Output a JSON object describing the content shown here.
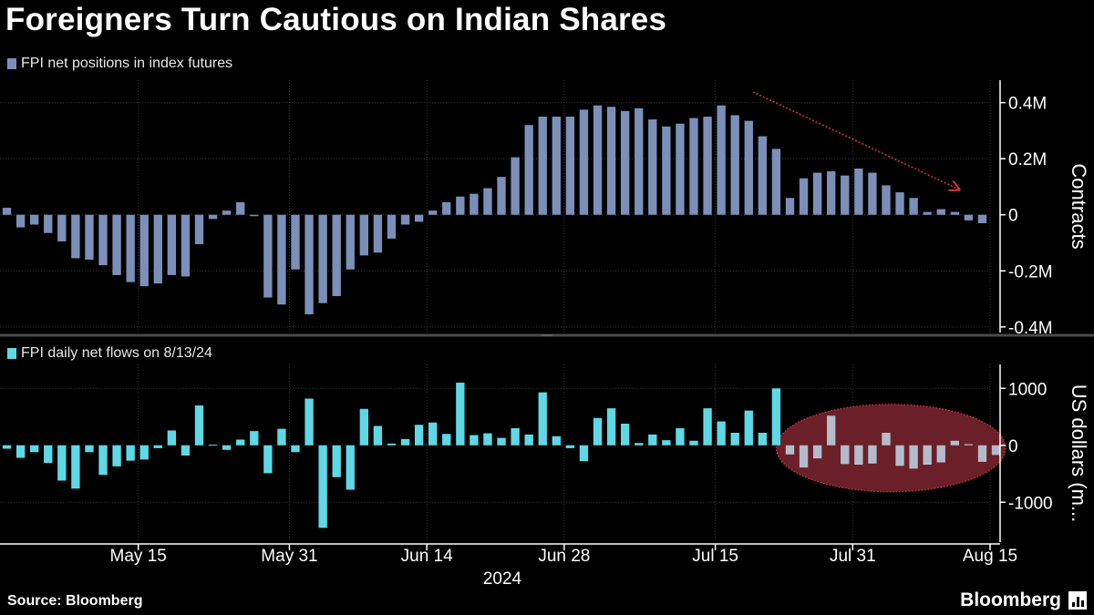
{
  "title": "Foreigners Turn Cautious on Indian Shares",
  "source": "Source: Bloomberg",
  "brand": "Bloomberg",
  "colors": {
    "positions": "#7b8fb8",
    "flows": "#5fd8e6",
    "flows_highlighted": "#b4bccc",
    "highlight_fill": "#6b2029",
    "arrow": "#d9363e",
    "grid": "#3a3a3a",
    "axis": "#ffffff",
    "divider": "#4a4a4a"
  },
  "chart_data": [
    {
      "type": "bar",
      "legend": "FPI net positions in index futures",
      "ylabel": "Contracts",
      "ylim": [
        -0.42,
        0.48
      ],
      "yticks": [
        0.4,
        0.2,
        0,
        -0.2,
        -0.4
      ],
      "ytick_labels": [
        "0.4M",
        "0.2M",
        "0",
        "-0.2M",
        "-0.4M"
      ],
      "units": "million contracts",
      "values": [
        0.025,
        -0.045,
        -0.035,
        -0.065,
        -0.095,
        -0.155,
        -0.16,
        -0.18,
        -0.215,
        -0.24,
        -0.255,
        -0.245,
        -0.215,
        -0.22,
        -0.105,
        -0.015,
        0.015,
        0.045,
        -0.005,
        -0.295,
        -0.32,
        -0.195,
        -0.355,
        -0.315,
        -0.29,
        -0.195,
        -0.145,
        -0.135,
        -0.085,
        -0.035,
        -0.025,
        0.015,
        0.045,
        0.065,
        0.075,
        0.095,
        0.135,
        0.205,
        0.32,
        0.35,
        0.35,
        0.35,
        0.375,
        0.39,
        0.385,
        0.37,
        0.38,
        0.34,
        0.315,
        0.325,
        0.345,
        0.35,
        0.39,
        0.355,
        0.335,
        0.28,
        0.235,
        0.06,
        0.13,
        0.15,
        0.155,
        0.14,
        0.165,
        0.15,
        0.105,
        0.08,
        0.06,
        0.01,
        0.02,
        0.01,
        -0.02,
        -0.03
      ],
      "annotation": "downward trend arrow from late July to mid-August"
    },
    {
      "type": "bar",
      "legend": "FPI daily net flows on 8/13/24",
      "ylabel": "US dollars (m...",
      "ylim": [
        -1700,
        1420
      ],
      "yticks": [
        1000,
        0,
        -1000
      ],
      "ytick_labels": [
        "1000",
        "0",
        "-1000"
      ],
      "units": "million US dollars",
      "values": [
        -60,
        -220,
        -120,
        -310,
        -620,
        -760,
        -120,
        -520,
        -370,
        -270,
        -250,
        -50,
        260,
        -180,
        700,
        10,
        -80,
        100,
        250,
        -490,
        290,
        -120,
        820,
        -1450,
        -560,
        -780,
        640,
        340,
        30,
        110,
        360,
        400,
        200,
        1100,
        180,
        210,
        130,
        300,
        190,
        930,
        160,
        -50,
        -280,
        480,
        650,
        380,
        40,
        190,
        90,
        300,
        80,
        650,
        420,
        220,
        610,
        220,
        1000,
        -160,
        -390,
        -230,
        520,
        -330,
        -340,
        -320,
        220,
        -360,
        -410,
        -340,
        -300,
        80,
        20,
        -290,
        -170
      ],
      "highlight_start_index": 57,
      "annotation": "recent outflows highlighted in red ellipse"
    }
  ],
  "x_axis": {
    "tick_labels": [
      "May 15",
      "May 31",
      "Jun 14",
      "Jun 28",
      "Jul 15",
      "Jul 31",
      "Aug 15"
    ],
    "tick_positions_index": [
      10,
      21,
      31,
      41,
      52,
      62,
      72
    ],
    "year_label": "2024"
  }
}
